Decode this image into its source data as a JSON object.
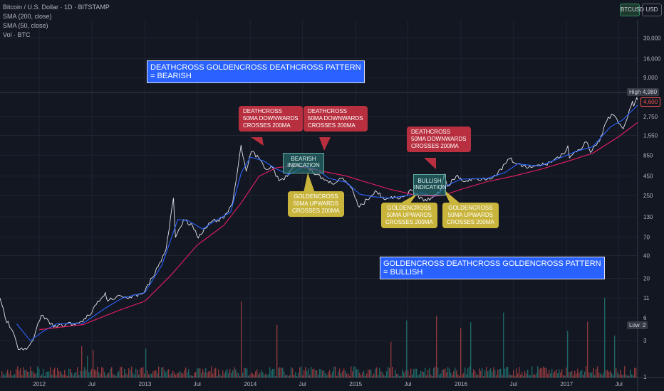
{
  "legend": {
    "symbol_line": "Bitcoin / U.S. Dollar · 1D · BITSTAMP",
    "sma200": "SMA (200, close)",
    "sma50": "SMA (50, close)",
    "volume": "Vol · BTC"
  },
  "toolbar": {
    "symbol": "BTCUSD",
    "currency": "USD"
  },
  "annotations": {
    "bearish_pattern": [
      "DEATHCROSS GOLDENCROSS DEATHCROSS PATTERN",
      "= BEARISH"
    ],
    "bullish_pattern": [
      "GOLDENCROSS DEATHCROSS GOLDENCROSS PATTERN",
      "= BULLISH"
    ],
    "deathcross_1": [
      "DEATHCROSS",
      "50MA DOWNWARDS",
      "CROSSES 200MA"
    ],
    "deathcross_2": [
      "DEATHCROSS",
      "50MA DOWNWARDS",
      "CROSSES 200MA"
    ],
    "deathcross_3": [
      "DEATHCROSS",
      "50MA DOWNWARDS",
      "CROSSES 200MA"
    ],
    "goldencross_1": [
      "GOLDENCROSS",
      "50MA UPWARDS",
      "CROSSES 200MA"
    ],
    "goldencross_2": [
      "GOLDENCROSS",
      "50MA UPWARDS",
      "CROSSES 200MA"
    ],
    "goldencross_3": [
      "GOLDENCROSS",
      "50MA UPWARDS",
      "CROSSES 200MA"
    ],
    "bearish_indication": [
      "BEARISH",
      "INDICATION"
    ],
    "bullish_indication": [
      "BULLISH",
      "INDICATION"
    ]
  },
  "price_badges": {
    "high_label": "High",
    "high_value": "4,980",
    "current_value": "4,600",
    "low_label": "Low",
    "low_value": "2"
  },
  "colors": {
    "background": "#131722",
    "price": "#e0e3eb",
    "sma50": "#2962ff",
    "sma200": "#e91e63",
    "volume_up": "#26a69a",
    "volume_down": "#ef5350"
  },
  "chart_data": {
    "type": "line",
    "y_scale": "log",
    "x_tick_labels": [
      "2012",
      "Jul",
      "2013",
      "Jul",
      "2014",
      "Jul",
      "2015",
      "Jul",
      "2016",
      "Jul",
      "2017",
      "Jul"
    ],
    "y_tick_labels": [
      "30,000",
      "16,000",
      "9,000",
      "2,750",
      "1,550",
      "850",
      "450",
      "250",
      "130",
      "70",
      "40",
      "20",
      "11",
      "6",
      "3",
      "1"
    ],
    "ylim": [
      1,
      50000
    ],
    "xlim": [
      "2011-08-18",
      "2017-09-04"
    ],
    "series": [
      {
        "name": "",
        "values": [
          [
            "2011-08-18",
            11
          ],
          [
            "2011-09-05",
            6
          ],
          [
            "2011-10-01",
            4
          ],
          [
            "2011-10-20",
            2.3
          ],
          [
            "2011-11-18",
            2.3
          ],
          [
            "2011-12-10",
            3
          ],
          [
            "2012-01-08",
            6.5
          ],
          [
            "2012-02-01",
            5.6
          ],
          [
            "2012-02-20",
            4.5
          ],
          [
            "2012-04-01",
            4.9
          ],
          [
            "2012-05-15",
            5.1
          ],
          [
            "2012-06-20",
            6.5
          ],
          [
            "2012-08-17",
            13
          ],
          [
            "2012-08-25",
            10
          ],
          [
            "2012-10-01",
            12
          ],
          [
            "2012-11-15",
            11
          ],
          [
            "2013-01-01",
            13.5
          ],
          [
            "2013-02-15",
            28
          ],
          [
            "2013-03-15",
            48
          ],
          [
            "2013-04-10",
            230
          ],
          [
            "2013-04-17",
            70
          ],
          [
            "2013-05-15",
            120
          ],
          [
            "2013-06-15",
            100
          ],
          [
            "2013-07-05",
            68
          ],
          [
            "2013-08-15",
            110
          ],
          [
            "2013-10-01",
            125
          ],
          [
            "2013-11-01",
            200
          ],
          [
            "2013-11-30",
            1150
          ],
          [
            "2013-12-18",
            520
          ],
          [
            "2014-01-05",
            950
          ],
          [
            "2014-02-10",
            700
          ],
          [
            "2014-02-25",
            550
          ],
          [
            "2014-03-20",
            580
          ],
          [
            "2014-04-11",
            390
          ],
          [
            "2014-05-10",
            445
          ],
          [
            "2014-06-03",
            650
          ],
          [
            "2014-07-15",
            620
          ],
          [
            "2014-08-18",
            470
          ],
          [
            "2014-09-20",
            400
          ],
          [
            "2014-10-10",
            360
          ],
          [
            "2014-11-12",
            420
          ],
          [
            "2014-12-15",
            320
          ],
          [
            "2015-01-14",
            175
          ],
          [
            "2015-02-10",
            220
          ],
          [
            "2015-03-10",
            290
          ],
          [
            "2015-04-15",
            220
          ],
          [
            "2015-05-20",
            235
          ],
          [
            "2015-06-20",
            245
          ],
          [
            "2015-07-15",
            290
          ],
          [
            "2015-08-25",
            210
          ],
          [
            "2015-09-20",
            232
          ],
          [
            "2015-10-20",
            270
          ],
          [
            "2015-11-04",
            480
          ],
          [
            "2015-11-15",
            330
          ],
          [
            "2015-12-15",
            450
          ],
          [
            "2016-01-15",
            380
          ],
          [
            "2016-02-15",
            410
          ],
          [
            "2016-03-15",
            415
          ],
          [
            "2016-05-01",
            450
          ],
          [
            "2016-06-17",
            760
          ],
          [
            "2016-07-15",
            650
          ],
          [
            "2016-08-15",
            575
          ],
          [
            "2016-09-15",
            610
          ],
          [
            "2016-10-15",
            640
          ],
          [
            "2016-11-15",
            720
          ],
          [
            "2016-12-20",
            880
          ],
          [
            "2017-01-05",
            1130
          ],
          [
            "2017-01-11",
            780
          ],
          [
            "2017-02-15",
            1000
          ],
          [
            "2017-03-10",
            1280
          ],
          [
            "2017-03-25",
            920
          ],
          [
            "2017-04-25",
            1300
          ],
          [
            "2017-05-25",
            2700
          ],
          [
            "2017-06-12",
            2900
          ],
          [
            "2017-07-16",
            1900
          ],
          [
            "2017-08-01",
            2750
          ],
          [
            "2017-08-17",
            4400
          ],
          [
            "2017-08-22",
            3800
          ],
          [
            "2017-09-01",
            4900
          ],
          [
            "2017-09-04",
            4600
          ]
        ]
      },
      {
        "name": "SMA (50, close)",
        "values": [
          [
            "2011-10-15",
            5
          ],
          [
            "2011-12-01",
            3
          ],
          [
            "2012-01-15",
            4
          ],
          [
            "2012-03-01",
            5
          ],
          [
            "2012-06-01",
            5.1
          ],
          [
            "2012-08-15",
            8
          ],
          [
            "2012-10-15",
            11
          ],
          [
            "2013-01-01",
            13
          ],
          [
            "2013-03-01",
            30
          ],
          [
            "2013-04-25",
            120
          ],
          [
            "2013-06-01",
            115
          ],
          [
            "2013-07-20",
            90
          ],
          [
            "2013-09-01",
            115
          ],
          [
            "2013-10-25",
            150
          ],
          [
            "2013-12-01",
            500
          ],
          [
            "2014-01-01",
            800
          ],
          [
            "2014-02-15",
            720
          ],
          [
            "2014-04-01",
            560
          ],
          [
            "2014-05-15",
            470
          ],
          [
            "2014-07-01",
            590
          ],
          [
            "2014-08-15",
            570
          ],
          [
            "2014-10-01",
            420
          ],
          [
            "2014-12-01",
            370
          ],
          [
            "2015-01-15",
            260
          ],
          [
            "2015-03-01",
            240
          ],
          [
            "2015-05-01",
            230
          ],
          [
            "2015-07-01",
            250
          ],
          [
            "2015-08-15",
            270
          ],
          [
            "2015-10-01",
            240
          ],
          [
            "2015-11-15",
            340
          ],
          [
            "2016-01-01",
            410
          ],
          [
            "2016-04-01",
            420
          ],
          [
            "2016-06-01",
            500
          ],
          [
            "2016-07-15",
            650
          ],
          [
            "2016-10-01",
            610
          ],
          [
            "2016-12-01",
            760
          ],
          [
            "2017-02-01",
            950
          ],
          [
            "2017-04-01",
            1100
          ],
          [
            "2017-06-01",
            2000
          ],
          [
            "2017-07-15",
            2500
          ],
          [
            "2017-09-04",
            3900
          ]
        ]
      },
      {
        "name": "SMA (200, close)",
        "values": [
          [
            "2012-01-01",
            4.2
          ],
          [
            "2012-06-01",
            4.9
          ],
          [
            "2012-10-01",
            7.5
          ],
          [
            "2013-01-01",
            10
          ],
          [
            "2013-04-01",
            22
          ],
          [
            "2013-07-01",
            55
          ],
          [
            "2013-10-01",
            100
          ],
          [
            "2013-12-01",
            200
          ],
          [
            "2014-02-01",
            450
          ],
          [
            "2014-04-01",
            580
          ],
          [
            "2014-06-01",
            620
          ],
          [
            "2014-08-01",
            560
          ],
          [
            "2014-10-01",
            500
          ],
          [
            "2014-12-01",
            450
          ],
          [
            "2015-02-01",
            380
          ],
          [
            "2015-05-01",
            300
          ],
          [
            "2015-08-01",
            250
          ],
          [
            "2015-10-01",
            245
          ],
          [
            "2015-11-01",
            250
          ],
          [
            "2016-01-01",
            300
          ],
          [
            "2016-04-01",
            380
          ],
          [
            "2016-07-01",
            450
          ],
          [
            "2016-10-01",
            550
          ],
          [
            "2017-01-01",
            700
          ],
          [
            "2017-04-01",
            900
          ],
          [
            "2017-07-01",
            1500
          ],
          [
            "2017-09-04",
            2300
          ]
        ]
      }
    ]
  }
}
